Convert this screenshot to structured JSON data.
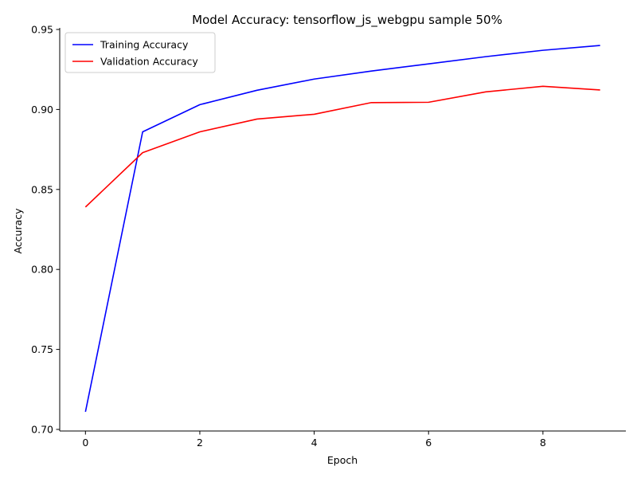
{
  "chart_data": {
    "type": "line",
    "title": "Model Accuracy: tensorflow_js_webgpu sample 50%",
    "xlabel": "Epoch",
    "ylabel": "Accuracy",
    "x": [
      0,
      1,
      2,
      3,
      4,
      5,
      6,
      7,
      8,
      9
    ],
    "xlim": [
      -0.45,
      9.45
    ],
    "ylim": [
      0.699,
      0.951
    ],
    "xticks": [
      0,
      2,
      4,
      6,
      8
    ],
    "xtick_labels": [
      "0",
      "2",
      "4",
      "6",
      "8"
    ],
    "yticks": [
      0.7,
      0.75,
      0.8,
      0.85,
      0.9,
      0.95
    ],
    "ytick_labels": [
      "0.70",
      "0.75",
      "0.80",
      "0.85",
      "0.90",
      "0.95"
    ],
    "grid": false,
    "legend_position": "top-left",
    "series": [
      {
        "name": "Training Accuracy",
        "color": "#0000ff",
        "values": [
          0.711,
          0.886,
          0.903,
          0.912,
          0.919,
          0.924,
          0.9285,
          0.933,
          0.937,
          0.94
        ]
      },
      {
        "name": "Validation Accuracy",
        "color": "#ff0000",
        "values": [
          0.839,
          0.873,
          0.886,
          0.894,
          0.897,
          0.9043,
          0.9045,
          0.911,
          0.9145,
          0.9122
        ]
      }
    ]
  }
}
